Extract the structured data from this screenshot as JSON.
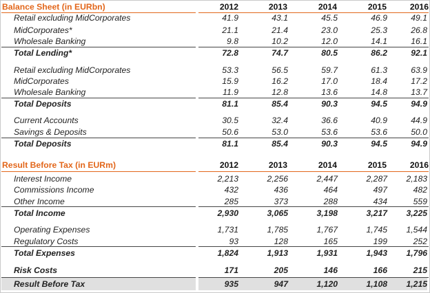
{
  "balance_sheet": {
    "title": "Balance Sheet (in EURbn)",
    "years": [
      "2012",
      "2013",
      "2014",
      "2015",
      "2016"
    ],
    "lending": {
      "rows": [
        {
          "label": "Retail excluding MidCorporates",
          "values": [
            "41.9",
            "43.1",
            "45.5",
            "46.9",
            "49.1"
          ]
        },
        {
          "label": "MidCorporates*",
          "values": [
            "21.1",
            "21.4",
            "23.0",
            "25.3",
            "26.8"
          ]
        },
        {
          "label": "Wholesale Banking",
          "values": [
            "9.8",
            "10.2",
            "12.0",
            "14.1",
            "16.1"
          ]
        }
      ],
      "total": {
        "label": "Total Lending*",
        "values": [
          "72.8",
          "74.7",
          "80.5",
          "86.2",
          "92.1"
        ]
      }
    },
    "deposits_by_segment": {
      "rows": [
        {
          "label": "Retail excluding MidCorporates",
          "values": [
            "53.3",
            "56.5",
            "59.7",
            "61.3",
            "63.9"
          ]
        },
        {
          "label": "MidCorporates",
          "values": [
            "15.9",
            "16.2",
            "17.0",
            "18.4",
            "17.2"
          ]
        },
        {
          "label": "Wholesale Banking",
          "values": [
            "11.9",
            "12.8",
            "13.6",
            "14.8",
            "13.7"
          ]
        }
      ],
      "total": {
        "label": "Total Deposits",
        "values": [
          "81.1",
          "85.4",
          "90.3",
          "94.5",
          "94.9"
        ]
      }
    },
    "deposits_by_type": {
      "rows": [
        {
          "label": "Current Accounts",
          "values": [
            "30.5",
            "32.4",
            "36.6",
            "40.9",
            "44.9"
          ]
        },
        {
          "label": "Savings & Deposits",
          "values": [
            "50.6",
            "53.0",
            "53.6",
            "53.6",
            "50.0"
          ]
        }
      ],
      "total": {
        "label": "Total Deposits",
        "values": [
          "81.1",
          "85.4",
          "90.3",
          "94.5",
          "94.9"
        ]
      }
    }
  },
  "result_before_tax": {
    "title": "Result Before Tax (in EURm)",
    "years": [
      "2012",
      "2013",
      "2014",
      "2015",
      "2016"
    ],
    "income": {
      "rows": [
        {
          "label": "Interest Income",
          "values": [
            "2,213",
            "2,256",
            "2,447",
            "2,287",
            "2,183"
          ]
        },
        {
          "label": "Commissions Income",
          "values": [
            "432",
            "436",
            "464",
            "497",
            "482"
          ]
        },
        {
          "label": "Other Income",
          "values": [
            "285",
            "373",
            "288",
            "434",
            "559"
          ]
        }
      ],
      "total": {
        "label": "Total Income",
        "values": [
          "2,930",
          "3,065",
          "3,198",
          "3,217",
          "3,225"
        ]
      }
    },
    "expenses": {
      "rows": [
        {
          "label": "Operating Expenses",
          "values": [
            "1,731",
            "1,785",
            "1,767",
            "1,745",
            "1,544"
          ]
        },
        {
          "label": "Regulatory Costs",
          "values": [
            "93",
            "128",
            "165",
            "199",
            "252"
          ]
        }
      ],
      "total": {
        "label": "Total Expenses",
        "values": [
          "1,824",
          "1,913",
          "1,931",
          "1,943",
          "1,796"
        ]
      }
    },
    "risk_costs": {
      "label": "Risk Costs",
      "values": [
        "171",
        "205",
        "146",
        "166",
        "215"
      ]
    },
    "result": {
      "label": "Result Before Tax",
      "values": [
        "935",
        "947",
        "1,120",
        "1,108",
        "1,215"
      ]
    }
  },
  "colors": {
    "header_text": "#e2661a",
    "header_line": "#e2661a",
    "result_fill": "#e0e0e0"
  }
}
